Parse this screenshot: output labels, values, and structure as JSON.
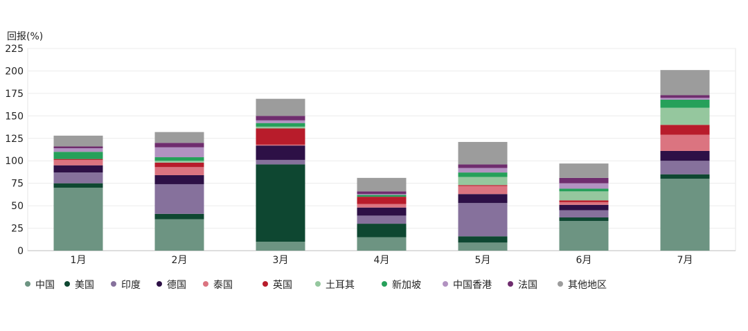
{
  "chart_data": {
    "type": "bar",
    "stacked": true,
    "title": "",
    "ylabel": "回报(%)",
    "xlabel": "",
    "ylim": [
      0,
      225
    ],
    "yticks": [
      0,
      25,
      50,
      75,
      100,
      125,
      150,
      175,
      200,
      225
    ],
    "grid": true,
    "legend_position": "bottom",
    "categories": [
      "1月",
      "2月",
      "3月",
      "4月",
      "5月",
      "6月",
      "7月"
    ],
    "series": [
      {
        "name": "中国",
        "color": "#6d9482",
        "values": [
          70,
          35,
          10,
          15,
          9,
          33,
          80
        ]
      },
      {
        "name": "美国",
        "color": "#0e4731",
        "values": [
          5,
          6,
          86,
          15,
          7,
          4,
          5
        ]
      },
      {
        "name": "印度",
        "color": "#86719c",
        "values": [
          12,
          33,
          5,
          9,
          37,
          8,
          15
        ]
      },
      {
        "name": "德国",
        "color": "#2d1046",
        "values": [
          8,
          10,
          16,
          9,
          10,
          6,
          11
        ]
      },
      {
        "name": "泰国",
        "color": "#db7480",
        "values": [
          6,
          9,
          1,
          4,
          9,
          3,
          18
        ]
      },
      {
        "name": "英国",
        "color": "#b81c2b",
        "values": [
          1,
          5,
          18,
          8,
          1,
          2,
          11
        ]
      },
      {
        "name": "土耳其",
        "color": "#95c79e",
        "values": [
          0,
          2,
          2,
          0,
          9,
          10,
          19
        ]
      },
      {
        "name": "新加坡",
        "color": "#26a05a",
        "values": [
          8,
          4,
          4,
          2,
          5,
          3,
          9
        ]
      },
      {
        "name": "中国香港",
        "color": "#b292c1",
        "values": [
          4,
          11,
          3,
          1,
          5,
          6,
          2
        ]
      },
      {
        "name": "法国",
        "color": "#6f2d6e",
        "values": [
          2,
          5,
          5,
          3,
          4,
          6,
          3
        ]
      },
      {
        "name": "其他地区",
        "color": "#9c9c9c",
        "values": [
          12,
          12,
          19,
          15,
          25,
          16,
          28
        ]
      }
    ]
  }
}
